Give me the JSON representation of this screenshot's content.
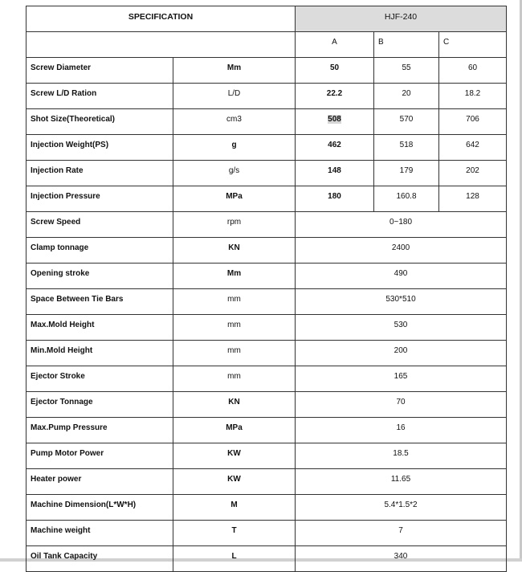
{
  "table": {
    "spec_header": "SPECIFICATION",
    "model": "HJF-240",
    "variants": [
      "A",
      "B",
      "C"
    ],
    "rows_variant": [
      {
        "name": "Screw Diameter",
        "unit": "Mm",
        "values": [
          "50",
          "55",
          "60"
        ]
      },
      {
        "name": "Screw L/D Ration",
        "unit": "L/D",
        "values": [
          "22.2",
          "20",
          "18.2"
        ]
      },
      {
        "name": "Shot Size(Theoretical)",
        "unit": "cm3",
        "values": [
          "508",
          "570",
          "706"
        ]
      },
      {
        "name": "Injection Weight(PS)",
        "unit": "g",
        "values": [
          "462",
          "518",
          "642"
        ]
      },
      {
        "name": "Injection Rate",
        "unit": "g/s",
        "values": [
          "148",
          "179",
          "202"
        ]
      },
      {
        "name": "Injection Pressure",
        "unit": "MPa",
        "values": [
          "180",
          "160.8",
          "128"
        ]
      }
    ],
    "rows_single": [
      {
        "name": "Screw Speed",
        "unit": "rpm",
        "value": "0~180"
      },
      {
        "name": "Clamp tonnage",
        "unit": "KN",
        "value": "2400"
      },
      {
        "name": "Opening stroke",
        "unit": "Mm",
        "value": "490"
      },
      {
        "name": "Space Between Tie Bars",
        "unit": "mm",
        "value": "530*510"
      },
      {
        "name": "Max.Mold Height",
        "unit": "mm",
        "value": "530"
      },
      {
        "name": "Min.Mold Height",
        "unit": "mm",
        "value": "200"
      },
      {
        "name": "Ejector Stroke",
        "unit": "mm",
        "value": "165"
      },
      {
        "name": "Ejector Tonnage",
        "unit": "KN",
        "value": "70"
      },
      {
        "name": "Max.Pump Pressure",
        "unit": "MPa",
        "value": "16"
      },
      {
        "name": "Pump Motor Power",
        "unit": "KW",
        "value": "18.5"
      },
      {
        "name": "Heater power",
        "unit": "KW",
        "value": "11.65"
      },
      {
        "name": "Machine Dimension(L*W*H)",
        "unit": "M",
        "value": "5.4*1.5*2"
      },
      {
        "name": "Machine weight",
        "unit": "T",
        "value": "7"
      },
      {
        "name": "Oil Tank Capacity",
        "unit": "L",
        "value": "340"
      }
    ],
    "header_fill": "#dcdcdc"
  }
}
